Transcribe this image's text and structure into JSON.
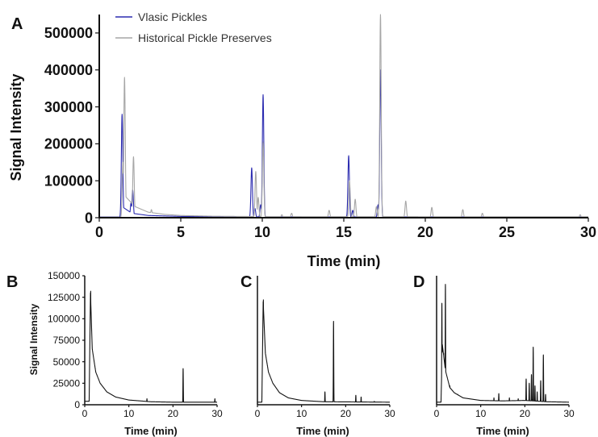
{
  "colors": {
    "vlasic": "#2b2bb0",
    "historical": "#a6a6a6",
    "trace": "#111111"
  },
  "chart_data": [
    {
      "panel": "A",
      "type": "line",
      "xlabel": "Time (min)",
      "ylabel": "Signal Intensity",
      "xlim": [
        0,
        30
      ],
      "ylim": [
        0,
        550000
      ],
      "x_ticks": [
        0,
        5,
        10,
        15,
        20,
        25,
        30
      ],
      "y_ticks": [
        0,
        100000,
        200000,
        300000,
        400000,
        500000
      ],
      "legend_position": "top-left",
      "series": [
        {
          "name": "Vlasic Pickles",
          "color": "#2b2bb0",
          "baseline": [
            [
              0,
              2000
            ],
            [
              1.3,
              2000
            ],
            [
              1.4,
              30000
            ],
            [
              2.0,
              12000
            ],
            [
              3.0,
              6000
            ],
            [
              5.0,
              3500
            ],
            [
              9.0,
              2500
            ],
            [
              15.0,
              2000
            ],
            [
              30,
              2000
            ]
          ],
          "peaks": [
            [
              1.4,
              280000
            ],
            [
              1.95,
              40000
            ],
            [
              2.05,
              75000
            ],
            [
              9.35,
              135000
            ],
            [
              9.55,
              25000
            ],
            [
              9.9,
              35000
            ],
            [
              10.05,
              333000
            ],
            [
              15.3,
              168000
            ],
            [
              15.55,
              20000
            ],
            [
              17.1,
              35000
            ],
            [
              17.25,
              400000
            ]
          ]
        },
        {
          "name": "Historical Pickle Preserves",
          "color": "#a6a6a6",
          "baseline": [
            [
              0,
              1500
            ],
            [
              1.4,
              1500
            ],
            [
              1.55,
              60000
            ],
            [
              2.2,
              30000
            ],
            [
              3.0,
              15000
            ],
            [
              4.0,
              9000
            ],
            [
              5.0,
              6000
            ],
            [
              7.0,
              4000
            ],
            [
              10.0,
              3000
            ],
            [
              30,
              2500
            ]
          ],
          "peaks": [
            [
              1.55,
              380000
            ],
            [
              1.45,
              150000
            ],
            [
              2.1,
              165000
            ],
            [
              3.2,
              22000
            ],
            [
              4.5,
              8000
            ],
            [
              9.6,
              125000
            ],
            [
              9.75,
              55000
            ],
            [
              10.05,
              205000
            ],
            [
              11.2,
              8000
            ],
            [
              11.8,
              12000
            ],
            [
              14.1,
              20000
            ],
            [
              15.35,
              100000
            ],
            [
              15.7,
              50000
            ],
            [
              17.0,
              30000
            ],
            [
              17.25,
              550000
            ],
            [
              18.8,
              45000
            ],
            [
              20.4,
              28000
            ],
            [
              22.3,
              22000
            ],
            [
              23.5,
              12000
            ],
            [
              29.5,
              8000
            ]
          ]
        }
      ]
    },
    {
      "panel": "B",
      "type": "line",
      "xlabel": "Time (min)",
      "ylabel": "Signal Intensity",
      "xlim": [
        0,
        30
      ],
      "ylim": [
        0,
        150000
      ],
      "x_ticks": [
        0,
        10,
        20,
        30
      ],
      "y_ticks": [
        0,
        25000,
        50000,
        75000,
        100000,
        125000,
        150000
      ],
      "series": [
        {
          "color": "#111111",
          "baseline": [
            [
              0,
              4000
            ],
            [
              1.0,
              4000
            ],
            [
              1.3,
              130000
            ],
            [
              1.7,
              65000
            ],
            [
              2.5,
              38000
            ],
            [
              3.5,
              25000
            ],
            [
              5.0,
              15000
            ],
            [
              7.0,
              9000
            ],
            [
              10.0,
              5500
            ],
            [
              15.0,
              3500
            ],
            [
              20.0,
              3000
            ],
            [
              30,
              3000
            ]
          ],
          "peaks": [
            [
              1.35,
              132000
            ],
            [
              14.1,
              7000
            ],
            [
              22.3,
              42000
            ],
            [
              29.5,
              7000
            ]
          ]
        }
      ]
    },
    {
      "panel": "C",
      "type": "line",
      "xlabel": "Time (min)",
      "xlim": [
        0,
        30
      ],
      "x_ticks": [
        0,
        10,
        20,
        30
      ],
      "ylim": [
        0,
        150000
      ],
      "series": [
        {
          "color": "#111111",
          "baseline": [
            [
              0,
              3000
            ],
            [
              1.0,
              3000
            ],
            [
              1.3,
              120000
            ],
            [
              1.8,
              60000
            ],
            [
              2.5,
              38000
            ],
            [
              3.5,
              25000
            ],
            [
              5.0,
              14000
            ],
            [
              7.0,
              8000
            ],
            [
              10.0,
              5000
            ],
            [
              15.0,
              3500
            ],
            [
              30,
              3000
            ]
          ],
          "peaks": [
            [
              1.35,
              122000
            ],
            [
              15.3,
              15000
            ],
            [
              17.25,
              97000
            ],
            [
              22.3,
              11000
            ],
            [
              23.5,
              9000
            ],
            [
              26.5,
              4000
            ]
          ]
        }
      ]
    },
    {
      "panel": "D",
      "type": "line",
      "xlabel": "Time (min)",
      "xlim": [
        0,
        30
      ],
      "x_ticks": [
        0,
        10,
        20,
        30
      ],
      "ylim": [
        0,
        150000
      ],
      "series": [
        {
          "color": "#111111",
          "baseline": [
            [
              0,
              3000
            ],
            [
              1.0,
              3000
            ],
            [
              1.3,
              70000
            ],
            [
              2.0,
              40000
            ],
            [
              3.0,
              20000
            ],
            [
              4.0,
              14000
            ],
            [
              6.0,
              8000
            ],
            [
              10.0,
              5000
            ],
            [
              15.0,
              4500
            ],
            [
              20.0,
              5000
            ],
            [
              25.0,
              3500
            ],
            [
              30,
              3000
            ]
          ],
          "peaks": [
            [
              1.2,
              118000
            ],
            [
              1.6,
              60000
            ],
            [
              2.0,
              140000
            ],
            [
              3.0,
              22000
            ],
            [
              4.8,
              12000
            ],
            [
              13.0,
              8000
            ],
            [
              14.1,
              13000
            ],
            [
              16.5,
              8000
            ],
            [
              18.5,
              7000
            ],
            [
              20.3,
              30000
            ],
            [
              21.0,
              25000
            ],
            [
              21.5,
              35000
            ],
            [
              21.9,
              67000
            ],
            [
              22.3,
              22000
            ],
            [
              22.8,
              15000
            ],
            [
              23.6,
              28000
            ],
            [
              24.2,
              58000
            ],
            [
              24.7,
              12000
            ]
          ]
        }
      ]
    }
  ]
}
